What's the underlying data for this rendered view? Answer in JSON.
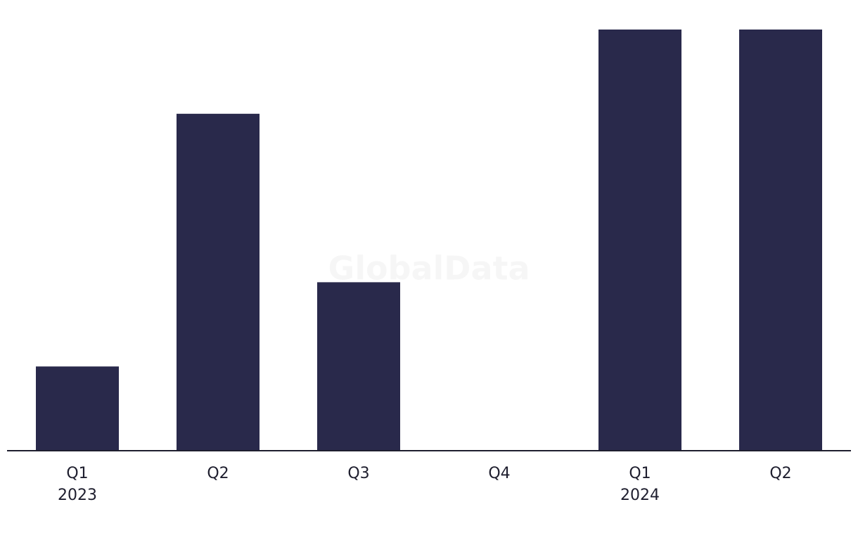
{
  "chart_data": {
    "type": "bar",
    "watermark": "GlobalData",
    "groups": [
      {
        "label": "2023",
        "categories": [
          "Q1",
          "Q2",
          "Q3",
          "Q4"
        ]
      },
      {
        "label": "2024",
        "categories": [
          "Q1",
          "Q2"
        ]
      }
    ],
    "values": [
      1,
      4,
      2,
      0,
      5,
      5
    ],
    "color": "#29294b",
    "ylim": [
      0,
      5
    ]
  }
}
